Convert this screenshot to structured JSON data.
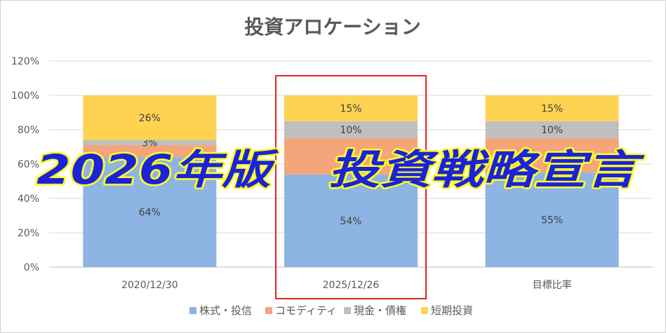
{
  "chart_data": {
    "type": "bar",
    "stacked": true,
    "title": "投資アロケーション",
    "categories": [
      "2020/12/30",
      "2025/12/26",
      "目標比率"
    ],
    "ylim": [
      0,
      1.2
    ],
    "yticks": [
      0,
      0.2,
      0.4,
      0.6,
      0.8,
      1.0,
      1.2
    ],
    "ytick_labels": [
      "0%",
      "20%",
      "40%",
      "60%",
      "80%",
      "100%",
      "120%"
    ],
    "grid": true,
    "legend_position": "bottom",
    "series": [
      {
        "name": "株式・投信",
        "color": "#8db4e2",
        "values": [
          0.64,
          0.54,
          0.55
        ],
        "labels": [
          "64%",
          "54%",
          "55%"
        ]
      },
      {
        "name": "コモディティ",
        "color": "#f4a57a",
        "values": [
          0.07,
          0.21,
          0.2
        ],
        "labels": [
          "",
          "",
          ""
        ]
      },
      {
        "name": "現金・債権",
        "color": "#bfbfbf",
        "values": [
          0.03,
          0.1,
          0.1
        ],
        "labels": [
          "3%",
          "10%",
          "10%"
        ]
      },
      {
        "name": "短期投資",
        "color": "#ffd352",
        "values": [
          0.26,
          0.15,
          0.15
        ],
        "labels": [
          "26%",
          "15%",
          "15%"
        ]
      }
    ],
    "highlight_category": "2025/12/26",
    "highlight_color": "#e8241e"
  },
  "banner": {
    "left_text": "2026年版",
    "right_text": "投資戦略宣言",
    "fill": "#1a23d9",
    "outline": "#ffff24"
  }
}
